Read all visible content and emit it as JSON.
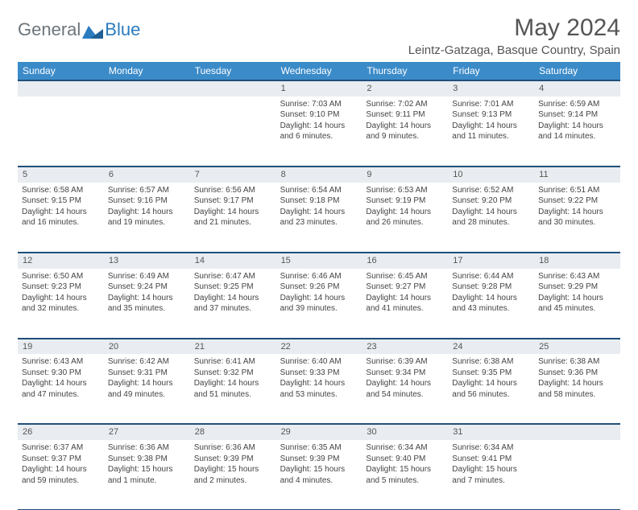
{
  "brand": {
    "general": "General",
    "blue": "Blue"
  },
  "title": "May 2024",
  "location": "Leintz-Gatzaga, Basque Country, Spain",
  "colors": {
    "header_bg": "#3b8bc9",
    "header_text": "#ffffff",
    "rule": "#1f4f7a",
    "daynum_bg": "#e9edf1",
    "brand_gray": "#6c757d",
    "brand_blue": "#2b7bbf"
  },
  "dayNames": [
    "Sunday",
    "Monday",
    "Tuesday",
    "Wednesday",
    "Thursday",
    "Friday",
    "Saturday"
  ],
  "weeks": [
    [
      null,
      null,
      null,
      {
        "n": "1",
        "sr": "7:03 AM",
        "ss": "9:10 PM",
        "dl": "14 hours and 6 minutes."
      },
      {
        "n": "2",
        "sr": "7:02 AM",
        "ss": "9:11 PM",
        "dl": "14 hours and 9 minutes."
      },
      {
        "n": "3",
        "sr": "7:01 AM",
        "ss": "9:13 PM",
        "dl": "14 hours and 11 minutes."
      },
      {
        "n": "4",
        "sr": "6:59 AM",
        "ss": "9:14 PM",
        "dl": "14 hours and 14 minutes."
      }
    ],
    [
      {
        "n": "5",
        "sr": "6:58 AM",
        "ss": "9:15 PM",
        "dl": "14 hours and 16 minutes."
      },
      {
        "n": "6",
        "sr": "6:57 AM",
        "ss": "9:16 PM",
        "dl": "14 hours and 19 minutes."
      },
      {
        "n": "7",
        "sr": "6:56 AM",
        "ss": "9:17 PM",
        "dl": "14 hours and 21 minutes."
      },
      {
        "n": "8",
        "sr": "6:54 AM",
        "ss": "9:18 PM",
        "dl": "14 hours and 23 minutes."
      },
      {
        "n": "9",
        "sr": "6:53 AM",
        "ss": "9:19 PM",
        "dl": "14 hours and 26 minutes."
      },
      {
        "n": "10",
        "sr": "6:52 AM",
        "ss": "9:20 PM",
        "dl": "14 hours and 28 minutes."
      },
      {
        "n": "11",
        "sr": "6:51 AM",
        "ss": "9:22 PM",
        "dl": "14 hours and 30 minutes."
      }
    ],
    [
      {
        "n": "12",
        "sr": "6:50 AM",
        "ss": "9:23 PM",
        "dl": "14 hours and 32 minutes."
      },
      {
        "n": "13",
        "sr": "6:49 AM",
        "ss": "9:24 PM",
        "dl": "14 hours and 35 minutes."
      },
      {
        "n": "14",
        "sr": "6:47 AM",
        "ss": "9:25 PM",
        "dl": "14 hours and 37 minutes."
      },
      {
        "n": "15",
        "sr": "6:46 AM",
        "ss": "9:26 PM",
        "dl": "14 hours and 39 minutes."
      },
      {
        "n": "16",
        "sr": "6:45 AM",
        "ss": "9:27 PM",
        "dl": "14 hours and 41 minutes."
      },
      {
        "n": "17",
        "sr": "6:44 AM",
        "ss": "9:28 PM",
        "dl": "14 hours and 43 minutes."
      },
      {
        "n": "18",
        "sr": "6:43 AM",
        "ss": "9:29 PM",
        "dl": "14 hours and 45 minutes."
      }
    ],
    [
      {
        "n": "19",
        "sr": "6:43 AM",
        "ss": "9:30 PM",
        "dl": "14 hours and 47 minutes."
      },
      {
        "n": "20",
        "sr": "6:42 AM",
        "ss": "9:31 PM",
        "dl": "14 hours and 49 minutes."
      },
      {
        "n": "21",
        "sr": "6:41 AM",
        "ss": "9:32 PM",
        "dl": "14 hours and 51 minutes."
      },
      {
        "n": "22",
        "sr": "6:40 AM",
        "ss": "9:33 PM",
        "dl": "14 hours and 53 minutes."
      },
      {
        "n": "23",
        "sr": "6:39 AM",
        "ss": "9:34 PM",
        "dl": "14 hours and 54 minutes."
      },
      {
        "n": "24",
        "sr": "6:38 AM",
        "ss": "9:35 PM",
        "dl": "14 hours and 56 minutes."
      },
      {
        "n": "25",
        "sr": "6:38 AM",
        "ss": "9:36 PM",
        "dl": "14 hours and 58 minutes."
      }
    ],
    [
      {
        "n": "26",
        "sr": "6:37 AM",
        "ss": "9:37 PM",
        "dl": "14 hours and 59 minutes."
      },
      {
        "n": "27",
        "sr": "6:36 AM",
        "ss": "9:38 PM",
        "dl": "15 hours and 1 minute."
      },
      {
        "n": "28",
        "sr": "6:36 AM",
        "ss": "9:39 PM",
        "dl": "15 hours and 2 minutes."
      },
      {
        "n": "29",
        "sr": "6:35 AM",
        "ss": "9:39 PM",
        "dl": "15 hours and 4 minutes."
      },
      {
        "n": "30",
        "sr": "6:34 AM",
        "ss": "9:40 PM",
        "dl": "15 hours and 5 minutes."
      },
      {
        "n": "31",
        "sr": "6:34 AM",
        "ss": "9:41 PM",
        "dl": "15 hours and 7 minutes."
      },
      null
    ]
  ],
  "labels": {
    "sunrise": "Sunrise: ",
    "sunset": "Sunset: ",
    "daylight": "Daylight: "
  }
}
